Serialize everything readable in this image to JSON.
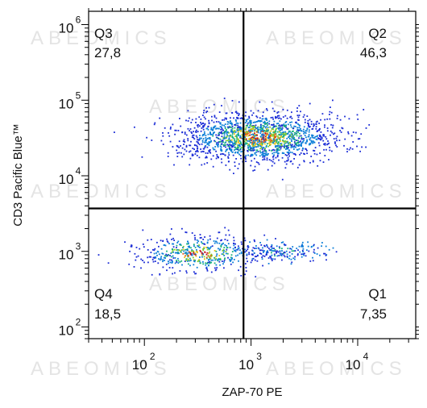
{
  "chart_data": {
    "type": "scatter",
    "subtype": "flow-cytometry-density-dotplot",
    "xlabel": "ZAP-70 PE",
    "ylabel": "CD3 Pacific Blue™",
    "x_scale": "log",
    "y_scale": "log",
    "xlim": [
      30,
      35000
    ],
    "ylim": [
      70,
      1500000
    ],
    "x_ticks": [
      {
        "base": "10",
        "exp": "2",
        "value": 100
      },
      {
        "base": "10",
        "exp": "3",
        "value": 1000
      },
      {
        "base": "10",
        "exp": "4",
        "value": 10000
      }
    ],
    "y_ticks": [
      {
        "base": "10",
        "exp": "2",
        "value": 100
      },
      {
        "base": "10",
        "exp": "3",
        "value": 1000
      },
      {
        "base": "10",
        "exp": "4",
        "value": 10000
      },
      {
        "base": "10",
        "exp": "5",
        "value": 100000
      },
      {
        "base": "10",
        "exp": "6",
        "value": 1000000
      }
    ],
    "gate": {
      "x": 850,
      "y": 3700
    },
    "quadrants": [
      {
        "name": "Q3",
        "value": "27,8",
        "position": "top-left"
      },
      {
        "name": "Q2",
        "value": "46,3",
        "position": "top-right"
      },
      {
        "name": "Q4",
        "value": "18,5",
        "position": "bottom-left"
      },
      {
        "name": "Q1",
        "value": "7,35",
        "position": "bottom-right"
      }
    ],
    "populations": [
      {
        "center": [
          1150,
          33000
        ],
        "spread": [
          0.36,
          0.16
        ],
        "count": 1700,
        "density_colored": true
      },
      {
        "center": [
          320,
          950
        ],
        "spread": [
          0.28,
          0.12
        ],
        "count": 480,
        "density_colored": true
      },
      {
        "center": [
          1900,
          1000
        ],
        "spread": [
          0.2,
          0.07
        ],
        "count": 180,
        "density_colored": false
      }
    ],
    "density_colors": [
      "#1a2bd6",
      "#0d7fd8",
      "#17b27a",
      "#7ccf2a",
      "#e8c415",
      "#e45a14",
      "#c8141e"
    ],
    "grid": false,
    "legend": "none"
  },
  "watermark": "ABEOMICS"
}
